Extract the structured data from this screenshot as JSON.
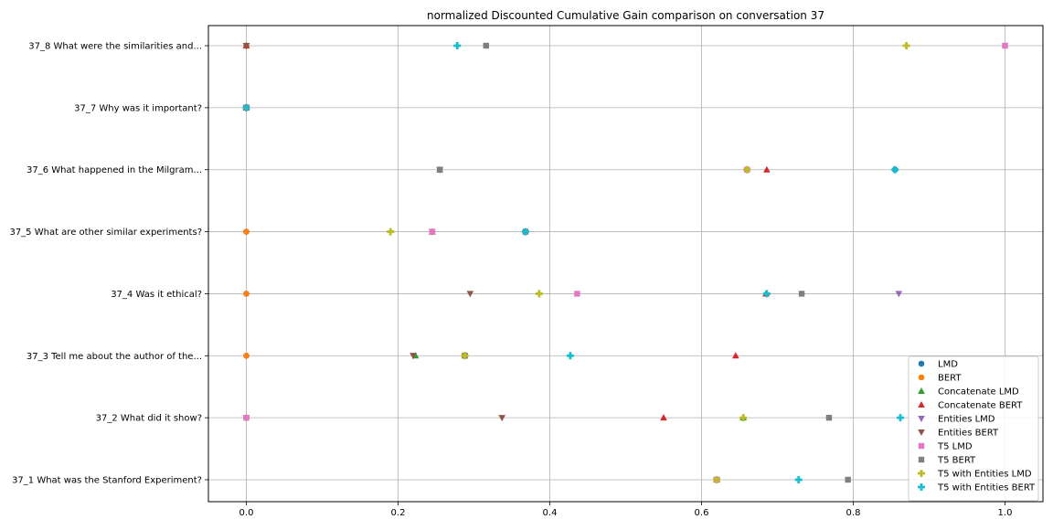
{
  "chart_data": {
    "type": "scatter",
    "title": "normalized Discounted Cumulative Gain comparison on conversation 37",
    "xlabel": "",
    "ylabel": "",
    "xlim": [
      -0.05,
      1.05
    ],
    "x_ticks": [
      "0.0",
      "0.2",
      "0.4",
      "0.6",
      "0.8",
      "1.0"
    ],
    "x_tick_values": [
      0.0,
      0.2,
      0.4,
      0.6,
      0.8,
      1.0
    ],
    "grid": true,
    "legend_position": "lower-right",
    "categories": [
      "37_1 What was the Stanford Experiment?",
      "37_2 What did it show?",
      "37_3 Tell me about the author of the...",
      "37_4 Was it ethical?",
      "37_5 What are other similar experiments?",
      "37_6 What happened in the Milgram...",
      "37_7 Why was it important?",
      "37_8 What were the similarities and..."
    ],
    "series": [
      {
        "name": "LMD",
        "marker": "circle",
        "color": "#1f77b4",
        "values": [
          0.62,
          0.0,
          0.0,
          0.0,
          0.0,
          0.855,
          0.0,
          0.0
        ]
      },
      {
        "name": "BERT",
        "marker": "circle",
        "color": "#ff7f0e",
        "values": [
          0.62,
          0.0,
          0.0,
          0.0,
          0.0,
          0.66,
          0.0,
          0.0
        ]
      },
      {
        "name": "Concatenate LMD",
        "marker": "triangle-up",
        "color": "#2ca02c",
        "values": [
          0.62,
          0.655,
          0.223,
          0.685,
          0.245,
          0.255,
          0.0,
          0.0
        ]
      },
      {
        "name": "Concatenate BERT",
        "marker": "triangle-up",
        "color": "#d62728",
        "values": [
          0.62,
          0.55,
          0.645,
          0.685,
          0.245,
          0.686,
          0.0,
          0.0
        ]
      },
      {
        "name": "Entities LMD",
        "marker": "triangle-down",
        "color": "#9467bd",
        "values": [
          0.62,
          0.0,
          0.22,
          0.86,
          0.245,
          0.255,
          0.0,
          0.0
        ]
      },
      {
        "name": "Entities BERT",
        "marker": "triangle-down",
        "color": "#8c564b",
        "values": [
          0.62,
          0.337,
          0.22,
          0.295,
          0.245,
          0.255,
          0.0,
          0.0
        ]
      },
      {
        "name": "T5 LMD",
        "marker": "square",
        "color": "#e377c2",
        "values": [
          0.62,
          0.0,
          0.288,
          0.436,
          0.245,
          0.66,
          0.0,
          1.0
        ]
      },
      {
        "name": "T5 BERT",
        "marker": "square",
        "color": "#7f7f7f",
        "values": [
          0.793,
          0.768,
          0.288,
          0.732,
          0.368,
          0.255,
          0.0,
          0.316
        ]
      },
      {
        "name": "T5 with Entities LMD",
        "marker": "plus",
        "color": "#bcbd22",
        "values": [
          0.62,
          0.655,
          0.288,
          0.386,
          0.19,
          0.66,
          0.0,
          0.87
        ]
      },
      {
        "name": "T5 with Entities BERT",
        "marker": "plus",
        "color": "#17becf",
        "values": [
          0.728,
          0.862,
          0.427,
          0.686,
          0.368,
          0.855,
          0.0,
          0.278
        ]
      }
    ]
  }
}
